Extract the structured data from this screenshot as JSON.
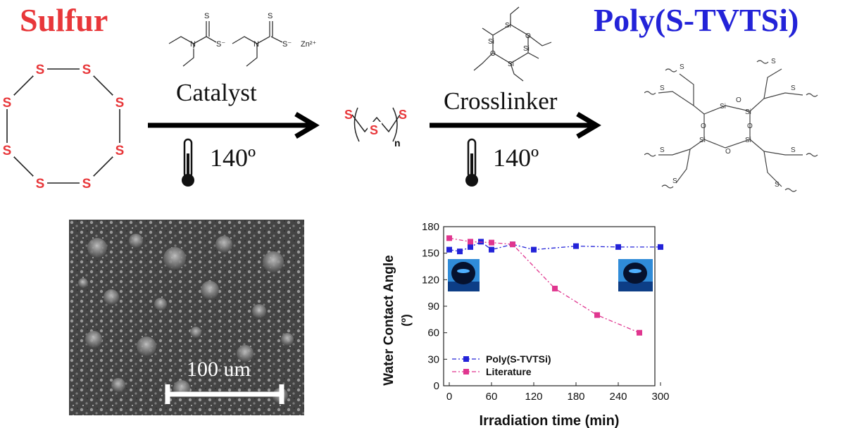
{
  "titles": {
    "left": "Sulfur",
    "right": "Poly(S-TVTSi)"
  },
  "colors": {
    "sulfur": "#e8373a",
    "poly": "#2323d8",
    "series_poly": "#2323d8",
    "series_lit": "#e0368f"
  },
  "step1": {
    "label": "Catalyst",
    "temperature": "140º"
  },
  "step2": {
    "label": "Crosslinker",
    "temperature": "140º"
  },
  "catalyst_formula": {
    "s_minus": "S⁻",
    "zn": "Zn²⁺",
    "s": "S",
    "n": "N"
  },
  "atoms": {
    "sulfur": "S",
    "silicon": "Si",
    "oxygen": "O",
    "subscript_n": "n"
  },
  "sem": {
    "scale_label": "100 um"
  },
  "chart_data": {
    "type": "line",
    "xlabel": "Irradiation time (min)",
    "ylabel": "Water Contact Angle",
    "ylabel_unit": "(º)",
    "xlim": [
      0,
      300
    ],
    "ylim": [
      0,
      180
    ],
    "x_ticks": [
      0,
      60,
      120,
      180,
      240,
      300
    ],
    "y_ticks": [
      0,
      30,
      60,
      90,
      120,
      150,
      180
    ],
    "legend_position": "bottom-left",
    "series": [
      {
        "name": "Poly(S-TVTSi)",
        "color": "#2323d8",
        "x": [
          0,
          15,
          30,
          45,
          60,
          90,
          120,
          180,
          240,
          300
        ],
        "y": [
          154,
          152,
          157,
          163,
          154,
          160,
          154,
          158,
          157,
          157
        ]
      },
      {
        "name": "Literature",
        "color": "#e0368f",
        "x": [
          0,
          30,
          60,
          90,
          150,
          210,
          270
        ],
        "y": [
          167,
          163,
          162,
          160,
          110,
          80,
          60
        ]
      }
    ]
  }
}
